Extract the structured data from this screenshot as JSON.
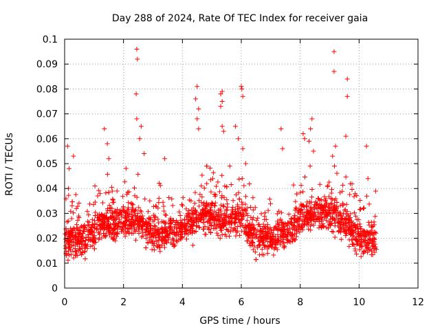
{
  "colors": {
    "series": "#ff0000",
    "frame": "#000000",
    "grid": "#a0a0a0",
    "background": "#ffffff"
  },
  "chart_data": {
    "type": "scatter",
    "title": "Day 288 of 2024, Rate Of TEC Index for receiver gaia",
    "xlabel": "GPS time / hours",
    "ylabel": "ROTI / TECUs",
    "xlim": [
      0,
      12
    ],
    "ylim": [
      0,
      0.1
    ],
    "x_ticks": [
      0,
      2,
      4,
      6,
      8,
      10,
      12
    ],
    "y_ticks": [
      0,
      0.01,
      0.02,
      0.03,
      0.04,
      0.05,
      0.06,
      0.07,
      0.08,
      0.09,
      0.1
    ],
    "x_tick_labels": [
      "0",
      "2",
      "4",
      "6",
      "8",
      "10",
      "12"
    ],
    "y_tick_labels": [
      "0",
      "0.01",
      "0.02",
      "0.03",
      "0.04",
      "0.05",
      "0.06",
      "0.07",
      "0.08",
      "0.09",
      "0.1"
    ],
    "grid": true,
    "marker": "+",
    "legend": "none",
    "x_data_range": [
      0,
      10.6
    ],
    "series": [
      {
        "color": "#ff0000",
        "note_estimated": "dense band ~0.01-0.035 throughout; notable peaks listed below",
        "peaks": [
          {
            "x": 0.1,
            "y": 0.057
          },
          {
            "x": 0.15,
            "y": 0.048
          },
          {
            "x": 0.3,
            "y": 0.053
          },
          {
            "x": 1.35,
            "y": 0.064
          },
          {
            "x": 1.45,
            "y": 0.058
          },
          {
            "x": 1.5,
            "y": 0.052
          },
          {
            "x": 2.45,
            "y": 0.096
          },
          {
            "x": 2.47,
            "y": 0.092
          },
          {
            "x": 2.43,
            "y": 0.078
          },
          {
            "x": 2.45,
            "y": 0.068
          },
          {
            "x": 2.6,
            "y": 0.065
          },
          {
            "x": 2.55,
            "y": 0.06
          },
          {
            "x": 2.7,
            "y": 0.054
          },
          {
            "x": 3.4,
            "y": 0.052
          },
          {
            "x": 4.5,
            "y": 0.081
          },
          {
            "x": 4.45,
            "y": 0.076
          },
          {
            "x": 4.55,
            "y": 0.072
          },
          {
            "x": 4.5,
            "y": 0.068
          },
          {
            "x": 4.55,
            "y": 0.064
          },
          {
            "x": 5.35,
            "y": 0.079
          },
          {
            "x": 5.3,
            "y": 0.078
          },
          {
            "x": 5.35,
            "y": 0.075
          },
          {
            "x": 5.3,
            "y": 0.073
          },
          {
            "x": 5.35,
            "y": 0.065
          },
          {
            "x": 5.4,
            "y": 0.063
          },
          {
            "x": 6.0,
            "y": 0.081
          },
          {
            "x": 6.02,
            "y": 0.08
          },
          {
            "x": 6.05,
            "y": 0.077
          },
          {
            "x": 5.8,
            "y": 0.065
          },
          {
            "x": 5.9,
            "y": 0.06
          },
          {
            "x": 6.05,
            "y": 0.056
          },
          {
            "x": 6.15,
            "y": 0.05
          },
          {
            "x": 7.35,
            "y": 0.064
          },
          {
            "x": 7.4,
            "y": 0.056
          },
          {
            "x": 8.1,
            "y": 0.062
          },
          {
            "x": 8.15,
            "y": 0.06
          },
          {
            "x": 8.4,
            "y": 0.068
          },
          {
            "x": 8.35,
            "y": 0.064
          },
          {
            "x": 8.3,
            "y": 0.059
          },
          {
            "x": 8.45,
            "y": 0.055
          },
          {
            "x": 9.15,
            "y": 0.095
          },
          {
            "x": 9.15,
            "y": 0.087
          },
          {
            "x": 9.2,
            "y": 0.057
          },
          {
            "x": 9.1,
            "y": 0.053
          },
          {
            "x": 9.6,
            "y": 0.084
          },
          {
            "x": 9.6,
            "y": 0.077
          },
          {
            "x": 9.55,
            "y": 0.061
          },
          {
            "x": 10.25,
            "y": 0.057
          },
          {
            "x": 10.3,
            "y": 0.044
          }
        ]
      }
    ]
  }
}
